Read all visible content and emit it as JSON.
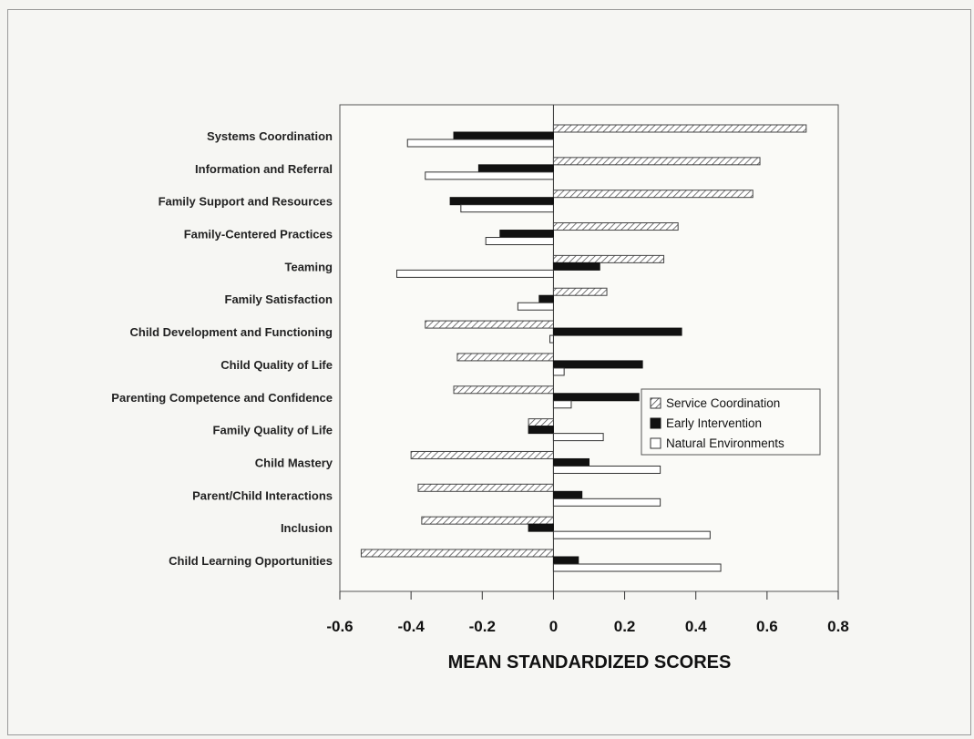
{
  "chart_data": {
    "type": "bar",
    "orientation": "horizontal",
    "xlabel": "MEAN STANDARDIZED SCORES",
    "xlim": [
      -0.6,
      0.8
    ],
    "xticks": [
      -0.6,
      -0.4,
      -0.2,
      0,
      0.2,
      0.4,
      0.6,
      0.8
    ],
    "xtick_labels": [
      "-0.6",
      "-0.4",
      "-0.2",
      "0",
      "0.2",
      "0.4",
      "0.6",
      "0.8"
    ],
    "legend_position": "right",
    "categories": [
      "Systems Coordination",
      "Information and Referral",
      "Family Support and Resources",
      "Family-Centered Practices",
      "Teaming",
      "Family Satisfaction",
      "Child Development and Functioning",
      "Child Quality of Life",
      "Parenting Competence and Confidence",
      "Family Quality of Life",
      "Child Mastery",
      "Parent/Child Interactions",
      "Inclusion",
      "Child Learning Opportunities"
    ],
    "series": [
      {
        "name": "Service Coordination",
        "fill": "hatched",
        "values": [
          0.71,
          0.58,
          0.56,
          0.35,
          0.31,
          0.15,
          -0.36,
          -0.27,
          -0.28,
          -0.07,
          -0.4,
          -0.38,
          -0.37,
          -0.54
        ]
      },
      {
        "name": "Early Intervention",
        "fill": "black",
        "values": [
          -0.28,
          -0.21,
          -0.29,
          -0.15,
          0.13,
          -0.04,
          0.36,
          0.25,
          0.24,
          -0.07,
          0.1,
          0.08,
          -0.07,
          0.07
        ]
      },
      {
        "name": "Natural Environments",
        "fill": "white",
        "values": [
          -0.41,
          -0.36,
          -0.26,
          -0.19,
          -0.44,
          -0.1,
          -0.01,
          0.03,
          0.05,
          0.14,
          0.3,
          0.3,
          0.44,
          0.47
        ]
      }
    ],
    "colors": {
      "black": "#111111",
      "white": "#ffffff",
      "hatch": "#555555",
      "frame": "#555555",
      "background": "#f6f6f3"
    }
  }
}
